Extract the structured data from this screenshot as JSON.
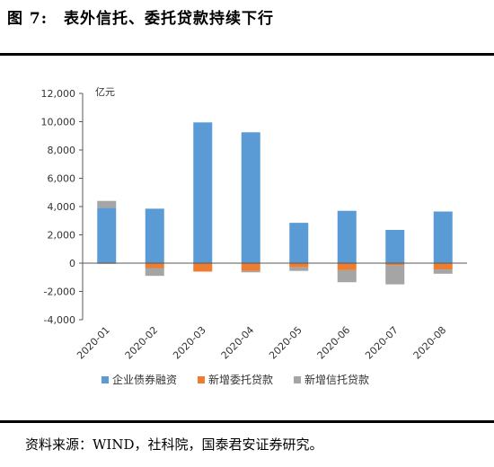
{
  "figure": {
    "number_label": "图 7:",
    "title": "表外信托、委托贷款持续下行",
    "source": "资料来源：WIND，社科院，国泰君安证券研究。"
  },
  "chart_data": {
    "type": "bar",
    "stacked": true,
    "unit_label": "亿元",
    "categories": [
      "2020-01",
      "2020-02",
      "2020-03",
      "2020-04",
      "2020-05",
      "2020-06",
      "2020-07",
      "2020-08"
    ],
    "ylim": [
      -4000,
      12000
    ],
    "yticks": [
      -4000,
      -2000,
      0,
      2000,
      4000,
      6000,
      8000,
      10000,
      12000
    ],
    "ytick_labels": [
      "-4,000",
      "-2,000",
      "0",
      "2,000",
      "4,000",
      "6,000",
      "8,000",
      "10,000",
      "12,000"
    ],
    "grid": false,
    "legend_position": "bottom",
    "series": [
      {
        "name": "企业债券融资",
        "color": "#5b9bd5",
        "values": [
          3900,
          3850,
          9950,
          9250,
          2850,
          3700,
          2350,
          3650
        ]
      },
      {
        "name": "新增委托贷款",
        "color": "#ed7d31",
        "values": [
          -50,
          -350,
          -600,
          -550,
          -300,
          -500,
          -150,
          -450
        ]
      },
      {
        "name": "新增信托贷款",
        "color": "#a5a5a5",
        "values": [
          500,
          -550,
          0,
          -100,
          -250,
          -850,
          -1350,
          -300
        ]
      }
    ]
  }
}
